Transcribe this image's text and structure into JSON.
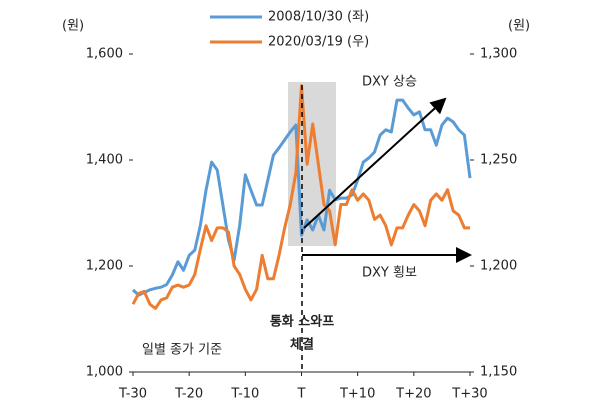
{
  "chart_data": {
    "type": "line",
    "y_unit": "(원)",
    "y2_unit": "(원)",
    "x": [
      -30,
      -29,
      -28,
      -27,
      -26,
      -25,
      -24,
      -23,
      -22,
      -21,
      -20,
      -19,
      -18,
      -17,
      -16,
      -15,
      -14,
      -13,
      -12,
      -11,
      -10,
      -9,
      -8,
      -7,
      -6,
      -5,
      -4,
      -3,
      -2,
      -1,
      0,
      1,
      2,
      3,
      4,
      5,
      6,
      7,
      8,
      9,
      10,
      11,
      12,
      13,
      14,
      15,
      16,
      17,
      18,
      19,
      20,
      21,
      22,
      23,
      24,
      25,
      26,
      27,
      28,
      29,
      30
    ],
    "series": [
      {
        "name": "2008/10/30 (좌)",
        "color": "#5b9bd5",
        "axis": "y",
        "values": [
          1155,
          1145,
          1150,
          1155,
          1158,
          1160,
          1165,
          1183,
          1208,
          1192,
          1220,
          1230,
          1277,
          1343,
          1396,
          1381,
          1315,
          1249,
          1211,
          1277,
          1372,
          1343,
          1315,
          1315,
          1362,
          1409,
          1423,
          1438,
          1453,
          1466,
          1258,
          1287,
          1268,
          1296,
          1268,
          1343,
          1325,
          1328,
          1328,
          1334,
          1362,
          1396,
          1404,
          1415,
          1447,
          1457,
          1453,
          1513,
          1513,
          1498,
          1485,
          1491,
          1457,
          1457,
          1428,
          1466,
          1479,
          1472,
          1457,
          1447,
          1366
        ]
      },
      {
        "name": "2020/03/19 (우)",
        "color": "#ed7d31",
        "axis": "y2",
        "values": [
          1182,
          1187,
          1188,
          1182,
          1180,
          1184,
          1185,
          1190,
          1191,
          1190,
          1191,
          1196,
          1208,
          1219,
          1212,
          1218,
          1218,
          1216,
          1200,
          1196,
          1189,
          1184,
          1189,
          1205,
          1194,
          1194,
          1205,
          1218,
          1229,
          1244,
          1285,
          1248,
          1267,
          1248,
          1229,
          1226,
          1210,
          1229,
          1229,
          1236,
          1231,
          1234,
          1231,
          1222,
          1224,
          1219,
          1210,
          1218,
          1218,
          1224,
          1229,
          1226,
          1219,
          1231,
          1234,
          1231,
          1236,
          1226,
          1224,
          1218,
          1218
        ]
      }
    ],
    "xlim": [
      -30,
      30
    ],
    "xticks": [
      {
        "value": -30,
        "label": "T-30"
      },
      {
        "value": -20,
        "label": "T-20"
      },
      {
        "value": -10,
        "label": "T-10"
      },
      {
        "value": 0,
        "label": "T"
      },
      {
        "value": 10,
        "label": "T+10"
      },
      {
        "value": 20,
        "label": "T+20"
      },
      {
        "value": 30,
        "label": "T+30"
      }
    ],
    "ylim": [
      1000,
      1600
    ],
    "yticks": [
      {
        "value": 1000,
        "label": "1,000"
      },
      {
        "value": 1200,
        "label": "1,200"
      },
      {
        "value": 1400,
        "label": "1,400"
      },
      {
        "value": 1600,
        "label": "1,600"
      }
    ],
    "y2lim": [
      1150,
      1300
    ],
    "y2ticks": [
      {
        "value": 1150,
        "label": "1,150"
      },
      {
        "value": 1200,
        "label": "1,200"
      },
      {
        "value": 1250,
        "label": "1,250"
      },
      {
        "value": 1300,
        "label": "1,300"
      }
    ],
    "annotations": [
      "DXY 상승",
      "DXY 횡보",
      "통화 스와프",
      "체결",
      "일별 종가 기준"
    ]
  }
}
